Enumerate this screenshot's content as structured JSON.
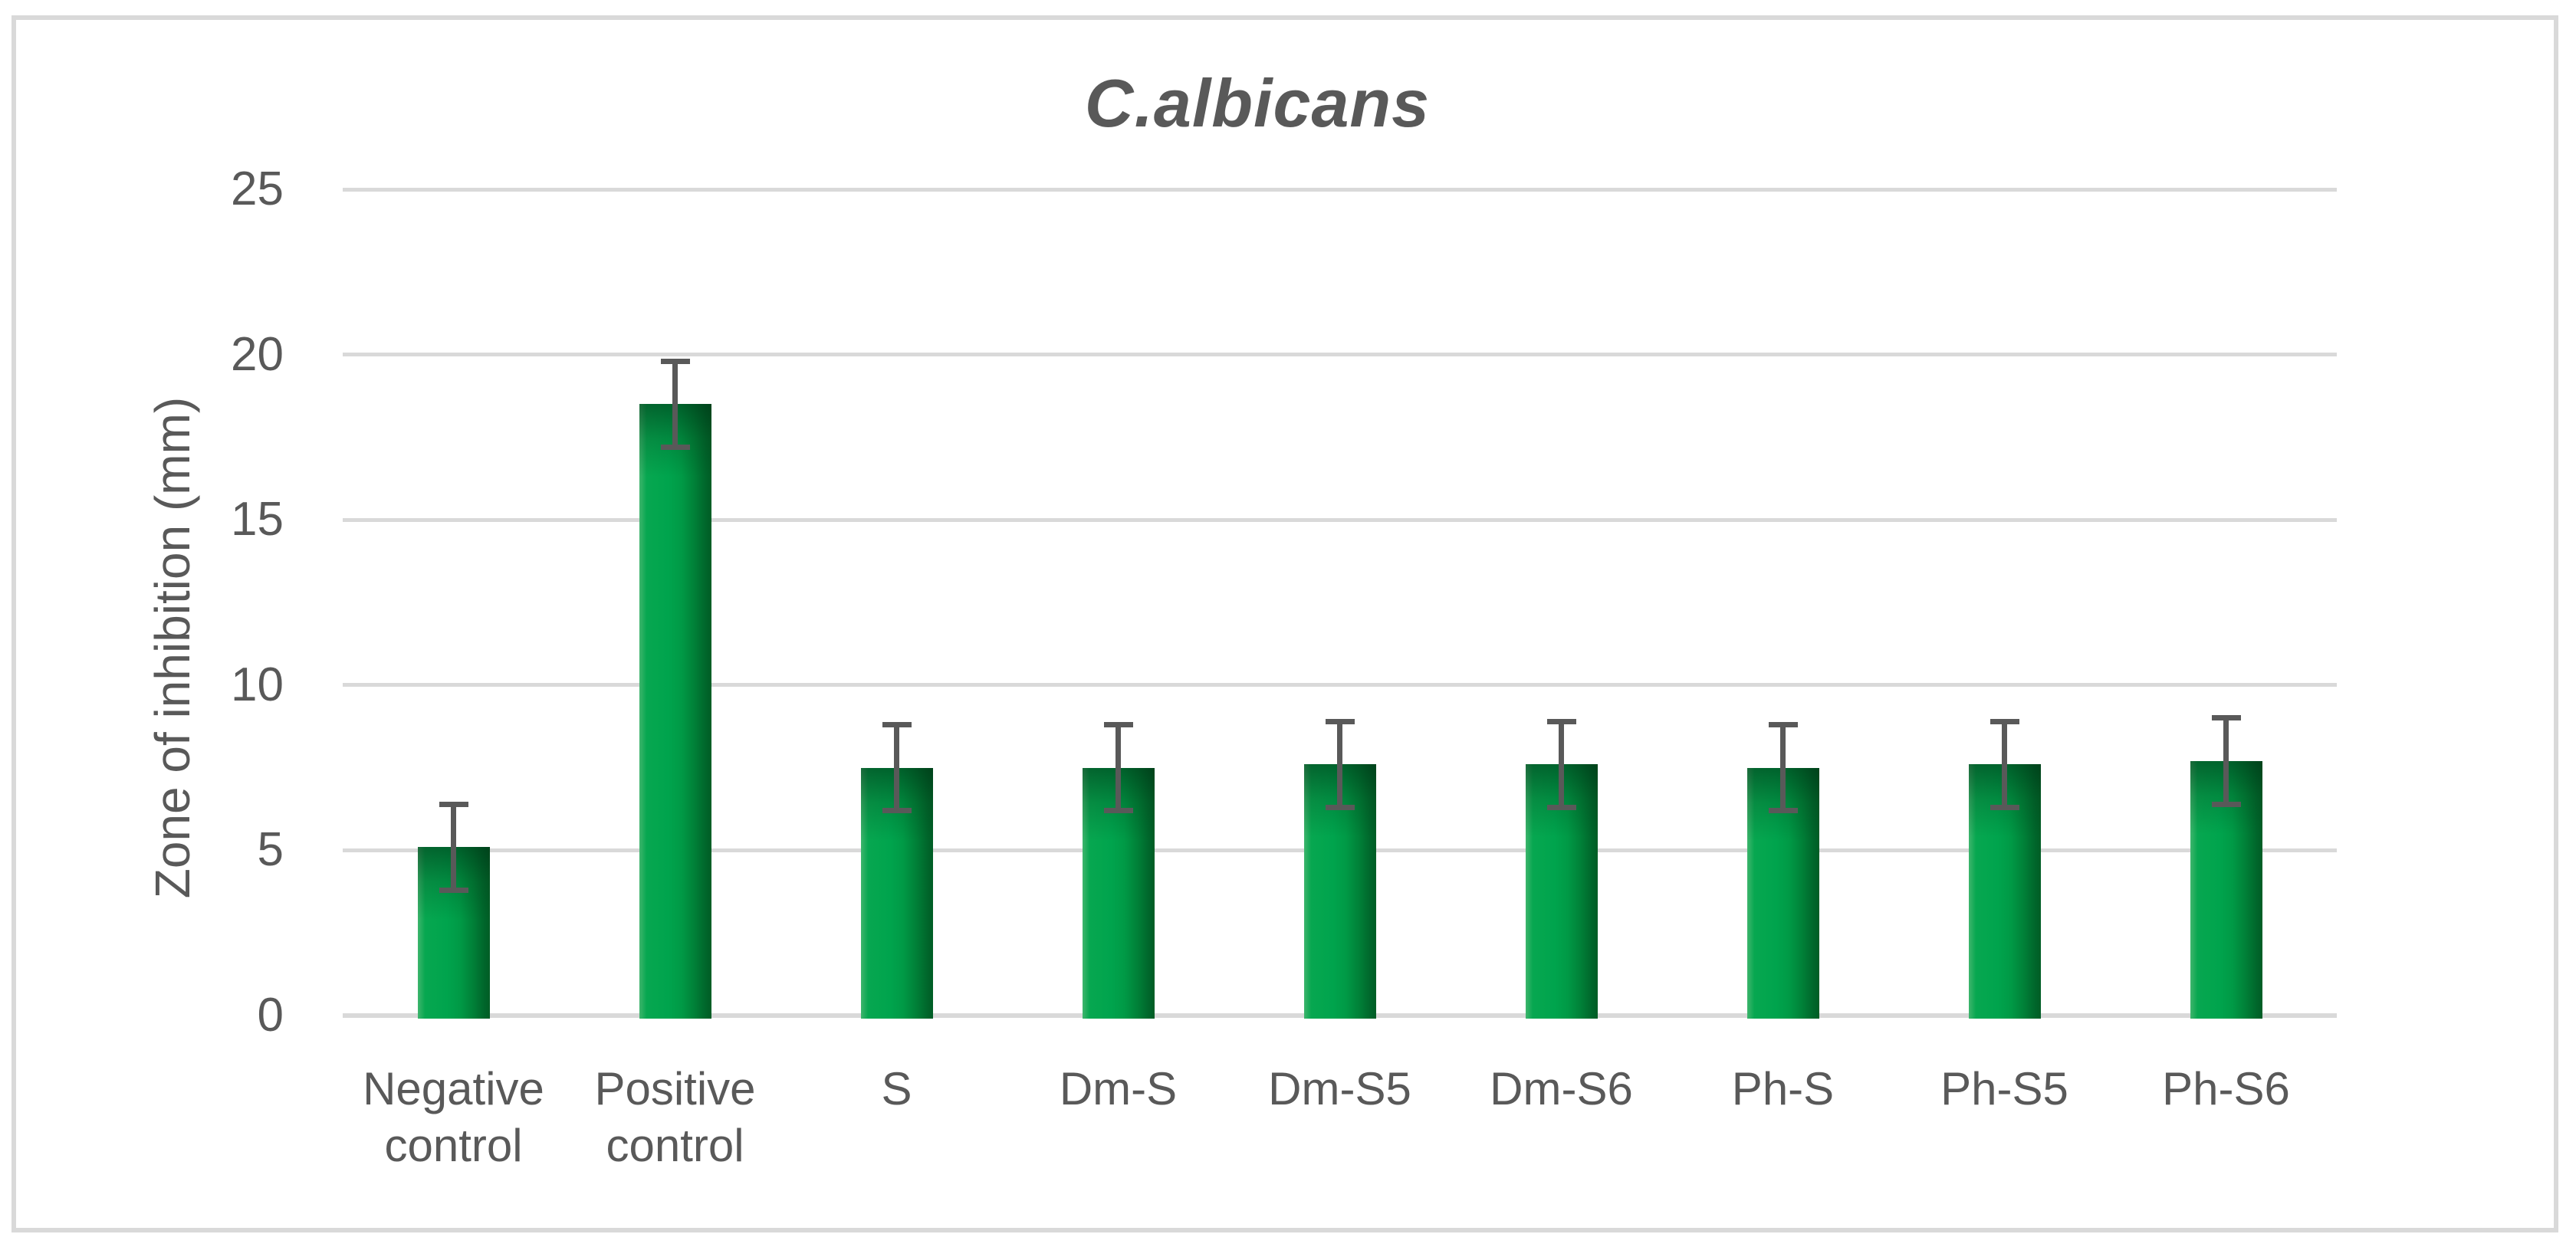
{
  "figure": {
    "background_color": "#ffffff",
    "border_color": "#d9d9d9"
  },
  "chart_data": {
    "type": "bar",
    "title": "C.albicans",
    "ylabel": "Zone of inhibition (mm)",
    "xlabel": "",
    "categories": [
      "Negative control",
      "Positive control",
      "S",
      "Dm-S",
      "Dm-S5",
      "Dm-S6",
      "Ph-S",
      "Ph-S5",
      "Ph-S6"
    ],
    "values": [
      5.1,
      18.5,
      7.5,
      7.5,
      7.6,
      7.6,
      7.5,
      7.6,
      7.7
    ],
    "error_bars": [
      1.3,
      1.3,
      1.3,
      1.3,
      1.3,
      1.3,
      1.3,
      1.3,
      1.3
    ],
    "yticks": [
      0,
      5,
      10,
      15,
      20,
      25
    ],
    "ylim": [
      0,
      25
    ],
    "grid": true,
    "legend": false,
    "bar_color_main": "#00a44d",
    "bar_color_light": "#3eb56d",
    "bar_color_dark": "#005d25",
    "gridline_color": "#d9d9d9",
    "axis_text_color": "#595959",
    "error_bar_color": "#595959"
  }
}
